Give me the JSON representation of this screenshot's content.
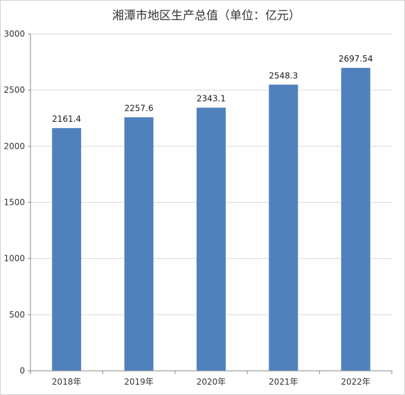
{
  "chart_data": {
    "type": "bar",
    "title": "湘潭市地区生产总值（单位：亿元）",
    "categories": [
      "2018年",
      "2019年",
      "2020年",
      "2021年",
      "2022年"
    ],
    "values": [
      2161.4,
      2257.6,
      2343.1,
      2548.3,
      2697.54
    ],
    "data_labels": [
      "2161.4",
      "2257.6",
      "2343.1",
      "2548.3",
      "2697.54"
    ],
    "ylim": [
      0,
      3000
    ],
    "yticks": [
      "0",
      "500",
      "1000",
      "1500",
      "2000",
      "2500",
      "3000"
    ],
    "grid": true,
    "legend": "none",
    "bar_color": "#4f81bd"
  }
}
